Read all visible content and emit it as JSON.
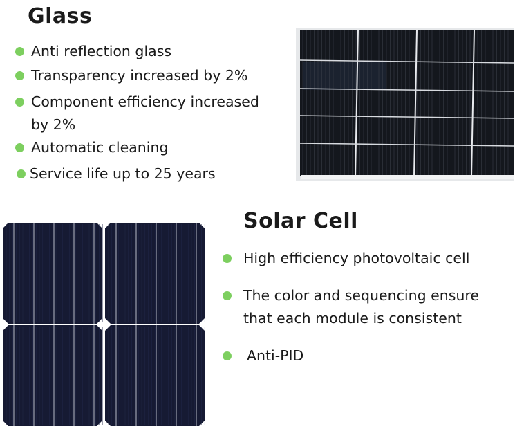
{
  "accent_color": "#7dcf5f",
  "glass": {
    "title": "Glass",
    "items": [
      {
        "line1": "Anti reflection glass"
      },
      {
        "line1": "Transparency increased by 2%"
      },
      {
        "line1": "Component efficiency increased",
        "line2": "by 2%"
      },
      {
        "line1": "Automatic cleaning"
      },
      {
        "line1": "Service life up to 25 years"
      }
    ],
    "image": "solar-panel-glass-photo"
  },
  "solar_cell": {
    "title": "Solar Cell",
    "items": [
      {
        "line1": "High efficiency photovoltaic cell"
      },
      {
        "line1": "The color and sequencing ensure",
        "line2": "that each module is consistent"
      },
      {
        "line1": "Anti-PID"
      }
    ],
    "image": "solar-cell-closeup-photo"
  }
}
